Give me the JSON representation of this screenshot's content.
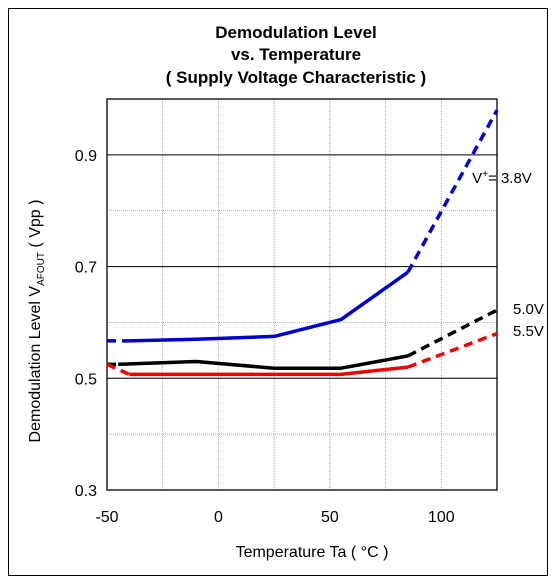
{
  "chart_data": {
    "type": "line",
    "title_lines": [
      "Demodulation Level",
      "vs. Temperature",
      "( Supply Voltage Characteristic )"
    ],
    "xlabel": "Temperature Ta ( °C )",
    "ylabel": {
      "prefix": "Demodulation Level V",
      "subscript": "AFOUT",
      "suffix": " ( Vpp )"
    },
    "xlim": [
      -50,
      125
    ],
    "ylim": [
      0.3,
      1.0
    ],
    "x_ticks": [
      -50,
      0,
      50,
      100
    ],
    "x_tick_labels": [
      "-50",
      "0",
      "50",
      "100"
    ],
    "y_ticks": [
      0.3,
      0.5,
      0.7,
      0.9
    ],
    "y_tick_labels": [
      "0.3",
      "0.5",
      "0.7",
      "0.9"
    ],
    "grid": true,
    "series": [
      {
        "label": {
          "prefix": "V",
          "superscript": "+",
          "suffix": "= 3.8V"
        },
        "color": "#0000cc",
        "solid": [
          [
            -40,
            0.567
          ],
          [
            -10,
            0.57
          ],
          [
            25,
            0.575
          ],
          [
            55,
            0.605
          ],
          [
            85,
            0.69
          ]
        ],
        "dashed_left": [
          [
            -50,
            0.567
          ],
          [
            -40,
            0.567
          ]
        ],
        "dashed_right": [
          [
            85,
            0.69
          ],
          [
            125,
            0.98
          ]
        ]
      },
      {
        "label": {
          "prefix": "5.0V",
          "superscript": "",
          "suffix": ""
        },
        "color": "#000000",
        "solid": [
          [
            -45,
            0.525
          ],
          [
            -10,
            0.53
          ],
          [
            25,
            0.518
          ],
          [
            55,
            0.518
          ],
          [
            85,
            0.54
          ]
        ],
        "dashed_left": [
          [
            -50,
            0.525
          ],
          [
            -45,
            0.525
          ]
        ],
        "dashed_right": [
          [
            85,
            0.54
          ],
          [
            125,
            0.622
          ]
        ]
      },
      {
        "label": {
          "prefix": "5.5V",
          "superscript": "",
          "suffix": ""
        },
        "color": "#ee0000",
        "solid": [
          [
            -40,
            0.507
          ],
          [
            -10,
            0.507
          ],
          [
            25,
            0.507
          ],
          [
            55,
            0.507
          ],
          [
            85,
            0.52
          ]
        ],
        "dashed_left": [
          [
            -50,
            0.525
          ],
          [
            -40,
            0.507
          ]
        ],
        "dashed_right": [
          [
            85,
            0.52
          ],
          [
            125,
            0.58
          ]
        ]
      }
    ]
  }
}
